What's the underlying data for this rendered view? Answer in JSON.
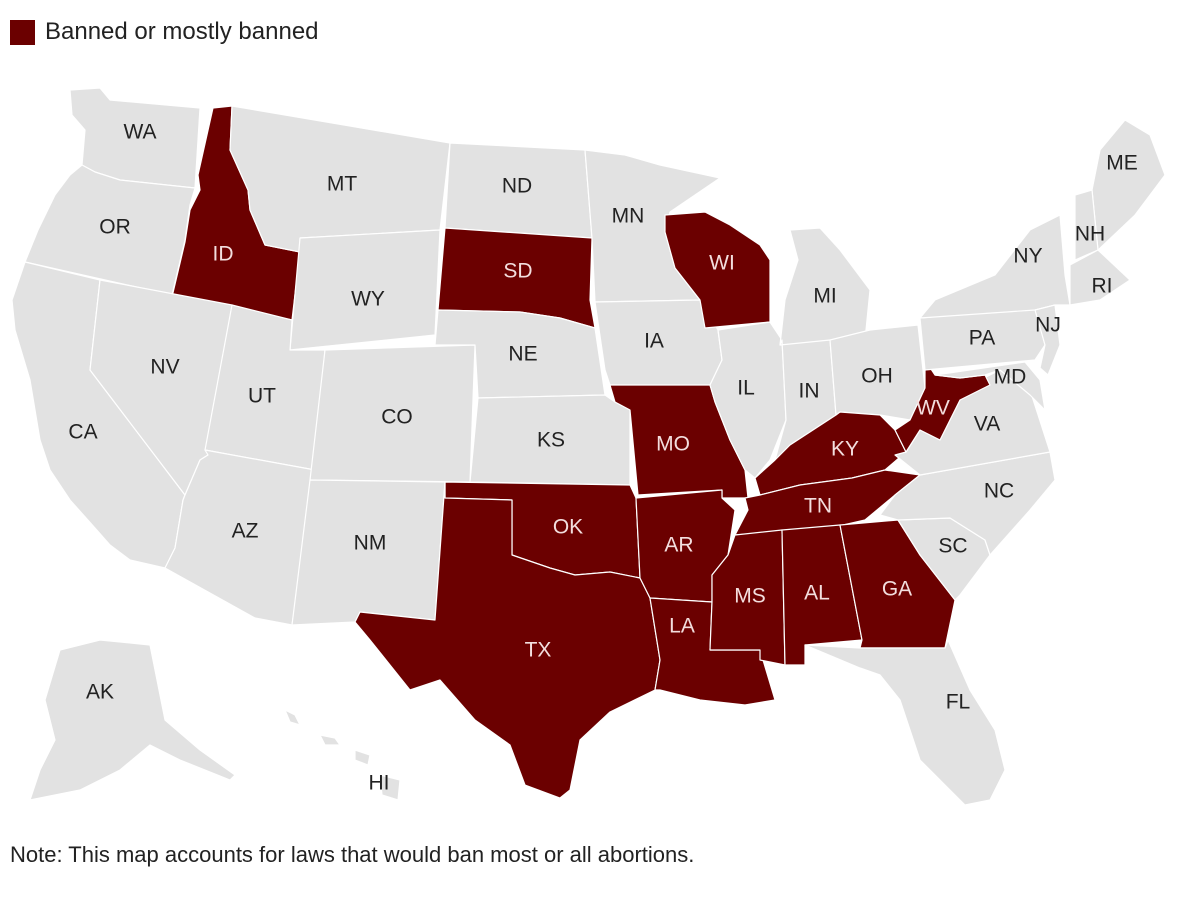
{
  "legend": {
    "label": "Banned or mostly banned",
    "color": "#6b0000"
  },
  "note": "Note: This map accounts for laws that would ban most or all abortions.",
  "colors": {
    "banned": "#6b0000",
    "other": "#e2e2e2",
    "banned_text": "#f3dede",
    "other_text": "#222222"
  },
  "states": [
    {
      "abbr": "WA",
      "banned": false
    },
    {
      "abbr": "OR",
      "banned": false
    },
    {
      "abbr": "CA",
      "banned": false
    },
    {
      "abbr": "ID",
      "banned": true
    },
    {
      "abbr": "NV",
      "banned": false
    },
    {
      "abbr": "MT",
      "banned": false
    },
    {
      "abbr": "WY",
      "banned": false
    },
    {
      "abbr": "UT",
      "banned": false
    },
    {
      "abbr": "AZ",
      "banned": false
    },
    {
      "abbr": "CO",
      "banned": false
    },
    {
      "abbr": "NM",
      "banned": false
    },
    {
      "abbr": "ND",
      "banned": false
    },
    {
      "abbr": "SD",
      "banned": true
    },
    {
      "abbr": "NE",
      "banned": false
    },
    {
      "abbr": "KS",
      "banned": false
    },
    {
      "abbr": "OK",
      "banned": true
    },
    {
      "abbr": "TX",
      "banned": true
    },
    {
      "abbr": "MN",
      "banned": false
    },
    {
      "abbr": "IA",
      "banned": false
    },
    {
      "abbr": "MO",
      "banned": true
    },
    {
      "abbr": "AR",
      "banned": true
    },
    {
      "abbr": "LA",
      "banned": true
    },
    {
      "abbr": "WI",
      "banned": true
    },
    {
      "abbr": "IL",
      "banned": false
    },
    {
      "abbr": "MI",
      "banned": false
    },
    {
      "abbr": "IN",
      "banned": false
    },
    {
      "abbr": "OH",
      "banned": false
    },
    {
      "abbr": "KY",
      "banned": true
    },
    {
      "abbr": "TN",
      "banned": true
    },
    {
      "abbr": "MS",
      "banned": true
    },
    {
      "abbr": "AL",
      "banned": true
    },
    {
      "abbr": "GA",
      "banned": true
    },
    {
      "abbr": "FL",
      "banned": false
    },
    {
      "abbr": "SC",
      "banned": false
    },
    {
      "abbr": "NC",
      "banned": false
    },
    {
      "abbr": "VA",
      "banned": false
    },
    {
      "abbr": "WV",
      "banned": true
    },
    {
      "abbr": "PA",
      "banned": false
    },
    {
      "abbr": "NY",
      "banned": false
    },
    {
      "abbr": "MD",
      "banned": false
    },
    {
      "abbr": "NJ",
      "banned": false
    },
    {
      "abbr": "ME",
      "banned": false
    },
    {
      "abbr": "NH",
      "banned": false
    },
    {
      "abbr": "RI",
      "banned": false
    },
    {
      "abbr": "AK",
      "banned": false
    },
    {
      "abbr": "HI",
      "banned": false
    }
  ]
}
